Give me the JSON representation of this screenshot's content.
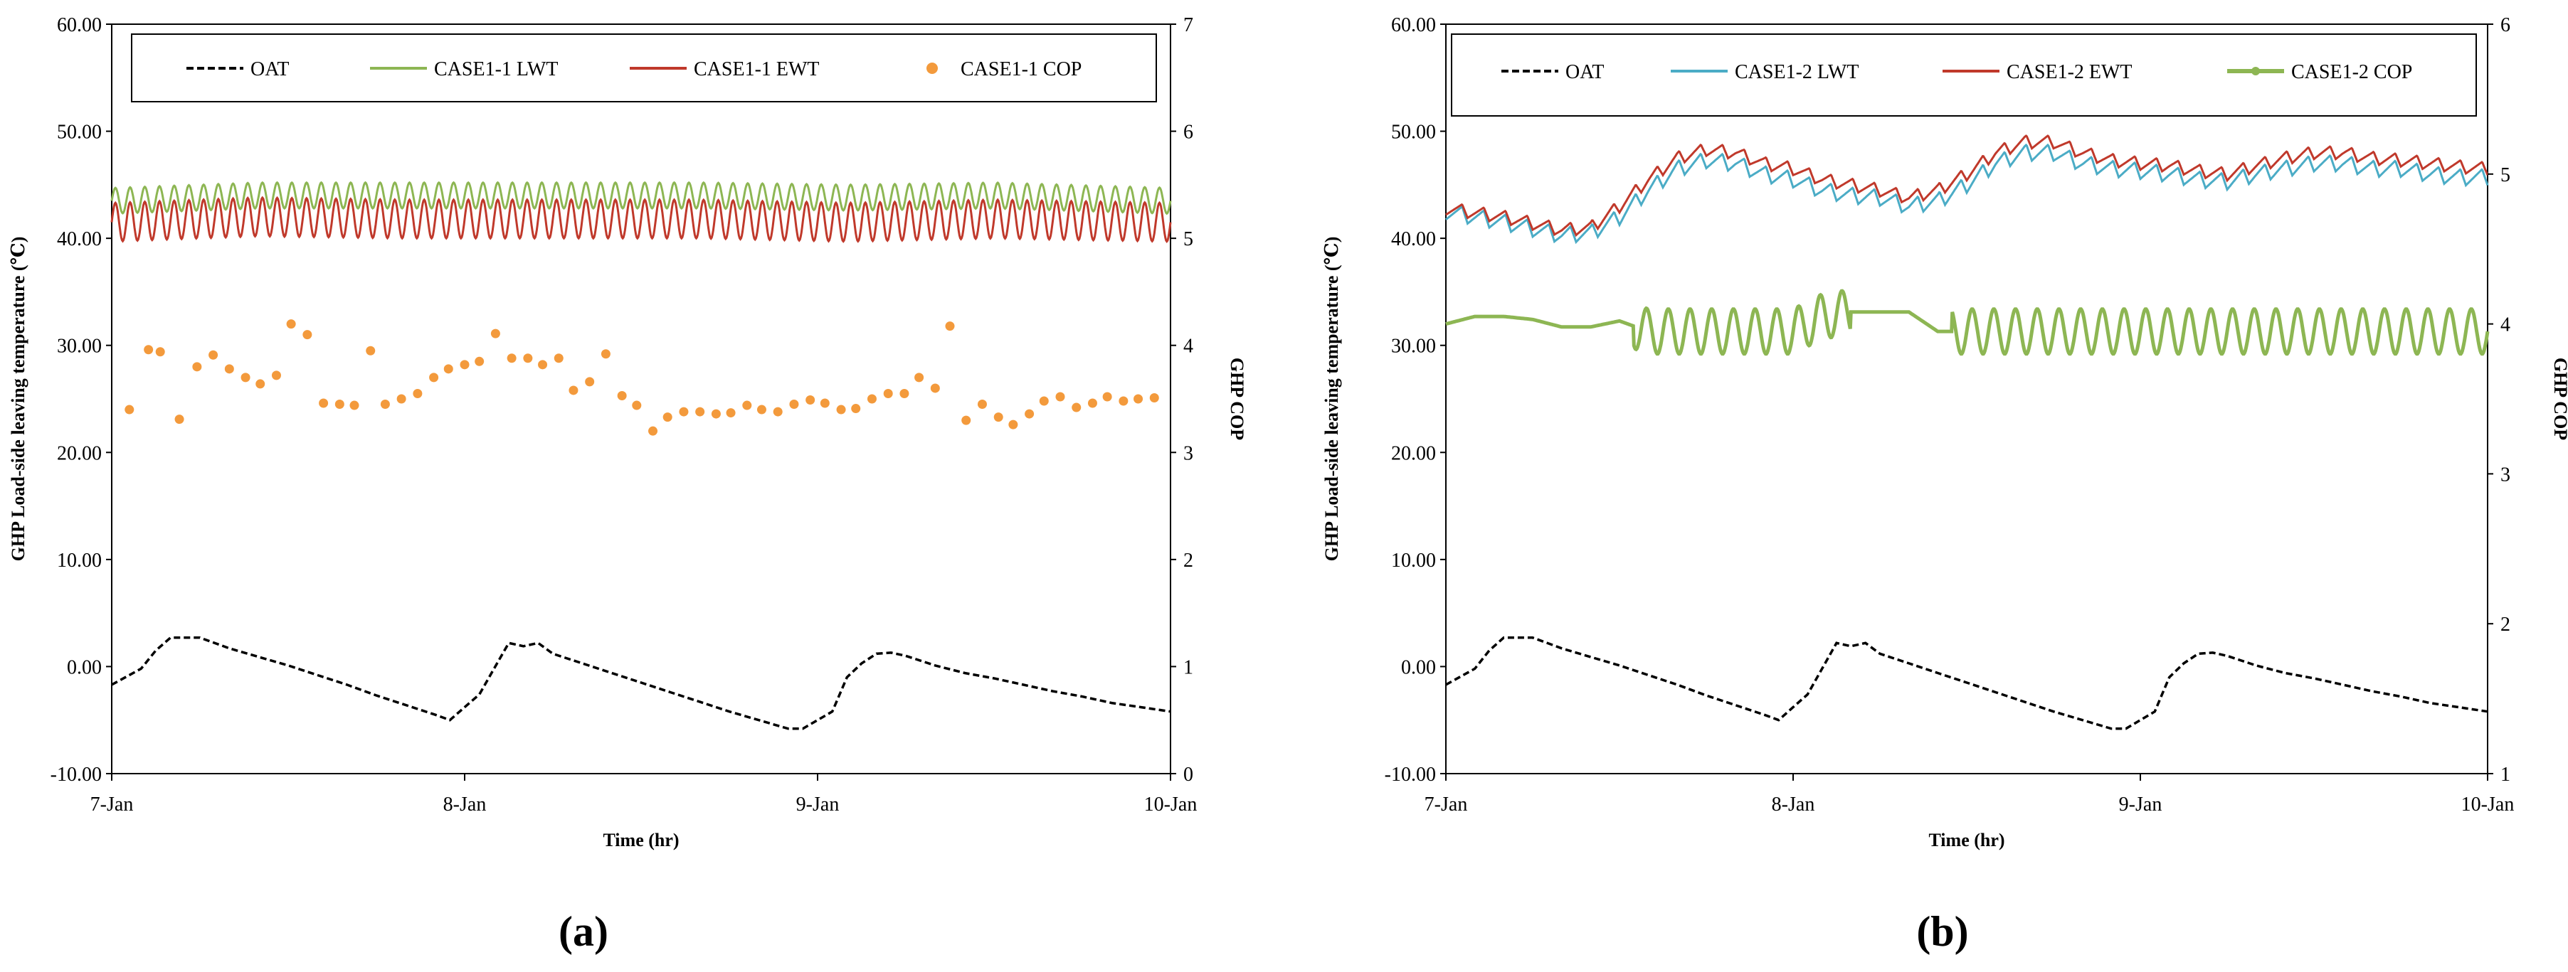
{
  "chart_data": [
    {
      "type": "line",
      "panel_label": "(a)",
      "xlabel": "Time (hr)",
      "ylabel": "GHP Load-side leaving temperature (℃)",
      "ylabel2": "GHP COP",
      "xlim": [
        0,
        72
      ],
      "ylim": [
        -10,
        60
      ],
      "y2lim": [
        0,
        7
      ],
      "x_ticks": [
        0,
        24,
        48,
        72
      ],
      "x_tick_labels": [
        "7-Jan",
        "8-Jan",
        "9-Jan",
        "10-Jan"
      ],
      "y_ticks": [
        -10,
        0,
        10,
        20,
        30,
        40,
        50,
        60
      ],
      "y_tick_labels": [
        "-10.00",
        "0.00",
        "10.00",
        "20.00",
        "30.00",
        "40.00",
        "50.00",
        "60.00"
      ],
      "y2_ticks": [
        0,
        1,
        2,
        3,
        4,
        5,
        6,
        7
      ],
      "y2_tick_labels": [
        "0",
        "1",
        "2",
        "3",
        "4",
        "5",
        "6",
        "7"
      ],
      "legend_position": "top",
      "series": [
        {
          "name": "OAT",
          "style": "dashed",
          "color": "#000000",
          "axis": "left",
          "x": [
            0,
            2,
            3,
            4,
            6,
            8,
            10,
            12,
            14,
            16,
            18,
            20,
            22,
            23,
            24,
            25,
            26,
            27,
            28,
            29,
            30,
            32,
            34,
            36,
            38,
            40,
            42,
            44,
            46,
            47,
            48,
            49,
            50,
            51,
            52,
            53,
            54,
            56,
            58,
            60,
            62,
            64,
            66,
            68,
            70,
            72
          ],
          "y": [
            -1.7,
            -0.2,
            1.5,
            2.7,
            2.7,
            1.7,
            0.9,
            0.1,
            -0.8,
            -1.7,
            -2.7,
            -3.6,
            -4.5,
            -5.0,
            -3.8,
            -2.6,
            -0.2,
            2.2,
            1.9,
            2.2,
            1.2,
            0.3,
            -0.6,
            -1.5,
            -2.4,
            -3.3,
            -4.2,
            -5.0,
            -5.8,
            -5.8,
            -5.0,
            -4.2,
            -1.0,
            0.3,
            1.2,
            1.3,
            1.0,
            0.1,
            -0.6,
            -1.1,
            -1.7,
            -2.3,
            -2.8,
            -3.4,
            -3.8,
            -4.2
          ]
        },
        {
          "name": "CASE1-1 LWT",
          "style": "oscillating",
          "color": "#8DB653",
          "axis": "left",
          "x": [
            0,
            10,
            20,
            30,
            40,
            50,
            60,
            72
          ],
          "y": [
            43.5,
            44.0,
            44.0,
            44.0,
            44.0,
            43.8,
            44.0,
            43.5
          ],
          "amplitude": 1.2,
          "period_hours": 1.0
        },
        {
          "name": "CASE1-1 EWT",
          "style": "oscillating",
          "color": "#C0392B",
          "axis": "left",
          "x": [
            0,
            10,
            20,
            30,
            40,
            50,
            60,
            72
          ],
          "y": [
            41.5,
            42.0,
            41.8,
            41.8,
            41.8,
            41.5,
            41.8,
            41.5
          ],
          "amplitude": 1.8,
          "period_hours": 1.0
        },
        {
          "name": "CASE1-1 COP",
          "style": "scatter",
          "color": "#F39A3C",
          "axis": "right",
          "x": [
            1.2,
            2.5,
            3.3,
            4.6,
            5.8,
            6.9,
            8.0,
            9.1,
            10.1,
            11.2,
            12.2,
            13.3,
            14.4,
            15.5,
            16.5,
            17.6,
            18.6,
            19.7,
            20.8,
            21.9,
            22.9,
            24.0,
            25.0,
            26.1,
            27.2,
            28.3,
            29.3,
            30.4,
            31.4,
            32.5,
            33.6,
            34.7,
            35.7,
            36.8,
            37.8,
            38.9,
            40.0,
            41.1,
            42.1,
            43.2,
            44.2,
            45.3,
            46.4,
            47.5,
            48.5,
            49.6,
            50.6,
            51.7,
            52.8,
            53.9,
            54.9,
            56.0,
            57.0,
            58.1,
            59.2,
            60.3,
            61.3,
            62.4,
            63.4,
            64.5,
            65.6,
            66.7,
            67.7,
            68.8,
            69.8,
            70.9
          ],
          "y": [
            3.4,
            3.96,
            3.94,
            3.31,
            3.8,
            3.91,
            3.78,
            3.7,
            3.64,
            3.72,
            4.2,
            4.1,
            3.46,
            3.45,
            3.44,
            3.95,
            3.45,
            3.5,
            3.55,
            3.7,
            3.78,
            3.82,
            3.85,
            4.11,
            3.88,
            3.88,
            3.82,
            3.88,
            3.58,
            3.66,
            3.92,
            3.53,
            3.44,
            3.2,
            3.33,
            3.38,
            3.38,
            3.36,
            3.37,
            3.44,
            3.4,
            3.38,
            3.45,
            3.49,
            3.46,
            3.4,
            3.41,
            3.5,
            3.55,
            3.55,
            3.7,
            3.6,
            4.18,
            3.3,
            3.45,
            3.33,
            3.26,
            3.36,
            3.48,
            3.52,
            3.42,
            3.46,
            3.52,
            3.48,
            3.5,
            3.51
          ]
        }
      ]
    },
    {
      "type": "line",
      "panel_label": "(b)",
      "xlabel": "Time (hr)",
      "ylabel": "GHP Load-side leaving temperature (℃)",
      "ylabel2": "GHP COP",
      "xlim": [
        0,
        72
      ],
      "ylim": [
        -10,
        60
      ],
      "y2lim": [
        1,
        6
      ],
      "x_ticks": [
        0,
        24,
        48,
        72
      ],
      "x_tick_labels": [
        "7-Jan",
        "8-Jan",
        "9-Jan",
        "10-Jan"
      ],
      "y_ticks": [
        -10,
        0,
        10,
        20,
        30,
        40,
        50,
        60
      ],
      "y_tick_labels": [
        "-10.00",
        "0.00",
        "10.00",
        "20.00",
        "30.00",
        "40.00",
        "50.00",
        "60.00"
      ],
      "y2_ticks": [
        1,
        2,
        3,
        4,
        5,
        6
      ],
      "y2_tick_labels": [
        "1",
        "2",
        "3",
        "4",
        "5",
        "6"
      ],
      "legend_position": "top",
      "series": [
        {
          "name": "OAT",
          "style": "dashed",
          "color": "#000000",
          "axis": "left",
          "x": [
            0,
            2,
            3,
            4,
            6,
            8,
            10,
            12,
            14,
            16,
            18,
            20,
            22,
            23,
            24,
            25,
            26,
            27,
            28,
            29,
            30,
            32,
            34,
            36,
            38,
            40,
            42,
            44,
            46,
            47,
            48,
            49,
            50,
            51,
            52,
            53,
            54,
            56,
            58,
            60,
            62,
            64,
            66,
            68,
            70,
            72
          ],
          "y": [
            -1.7,
            -0.2,
            1.5,
            2.7,
            2.7,
            1.7,
            0.9,
            0.1,
            -0.8,
            -1.7,
            -2.7,
            -3.6,
            -4.5,
            -5.0,
            -3.8,
            -2.6,
            -0.2,
            2.2,
            1.9,
            2.2,
            1.2,
            0.3,
            -0.6,
            -1.5,
            -2.4,
            -3.3,
            -4.2,
            -5.0,
            -5.8,
            -5.8,
            -5.0,
            -4.2,
            -1.0,
            0.3,
            1.2,
            1.3,
            1.0,
            0.1,
            -0.6,
            -1.1,
            -1.7,
            -2.3,
            -2.8,
            -3.4,
            -3.8,
            -4.2
          ]
        },
        {
          "name": "CASE1-2 LWT",
          "style": "sawtooth",
          "color": "#4BACC6",
          "axis": "left",
          "x": [
            0,
            4,
            8,
            10,
            12,
            14,
            16,
            18,
            20,
            22,
            24,
            26,
            28,
            30,
            32,
            34,
            36,
            38,
            40,
            42,
            44,
            46,
            48,
            50,
            52,
            54,
            56,
            58,
            60,
            62,
            64,
            66,
            68,
            70,
            72
          ],
          "y": [
            42.5,
            41.5,
            40.3,
            40.5,
            42.0,
            44.5,
            46.5,
            47.3,
            47.0,
            46.0,
            45.5,
            44.5,
            44.0,
            43.8,
            43.0,
            43.5,
            45.0,
            47.0,
            48.0,
            48.0,
            47.0,
            46.5,
            46.3,
            46.0,
            45.5,
            45.3,
            46.0,
            46.5,
            47.0,
            47.0,
            46.5,
            46.5,
            46.0,
            45.7,
            45.7
          ],
          "amplitude": 1.5,
          "period_hours": 1.5
        },
        {
          "name": "CASE1-2 EWT",
          "style": "sawtooth",
          "color": "#C0392B",
          "axis": "left",
          "x": [
            0,
            4,
            8,
            10,
            12,
            14,
            16,
            18,
            20,
            22,
            24,
            26,
            28,
            30,
            32,
            34,
            36,
            38,
            40,
            42,
            44,
            46,
            48,
            50,
            52,
            54,
            56,
            58,
            60,
            62,
            64,
            66,
            68,
            70,
            72
          ],
          "y": [
            42.8,
            42.0,
            40.8,
            41.0,
            43.0,
            45.5,
            47.5,
            48.3,
            48.0,
            47.0,
            46.5,
            45.5,
            45.0,
            44.5,
            43.8,
            44.5,
            46.0,
            48.0,
            49.0,
            49.0,
            48.0,
            47.3,
            47.0,
            46.8,
            46.3,
            46.0,
            46.8,
            47.5,
            48.0,
            48.0,
            47.5,
            47.3,
            47.0,
            46.7,
            46.5
          ],
          "amplitude": 1.2,
          "period_hours": 1.5
        },
        {
          "name": "CASE1-2 COP",
          "style": "oscillating",
          "color": "#8DB653",
          "axis": "right",
          "x": [
            0,
            2,
            4,
            6,
            8,
            10,
            12,
            14,
            24,
            26,
            28,
            30,
            32,
            34,
            36,
            48,
            60,
            72
          ],
          "y": [
            4.0,
            4.05,
            4.05,
            4.03,
            3.98,
            3.98,
            4.02,
            3.95,
            3.95,
            4.05,
            4.08,
            4.08,
            4.08,
            3.95,
            3.95,
            3.95,
            3.95,
            3.95
          ],
          "amplitude": 0.15,
          "period_hours": 1.5,
          "oscillate_ranges": [
            [
              13,
              28
            ],
            [
              35,
              72
            ]
          ]
        }
      ]
    }
  ]
}
